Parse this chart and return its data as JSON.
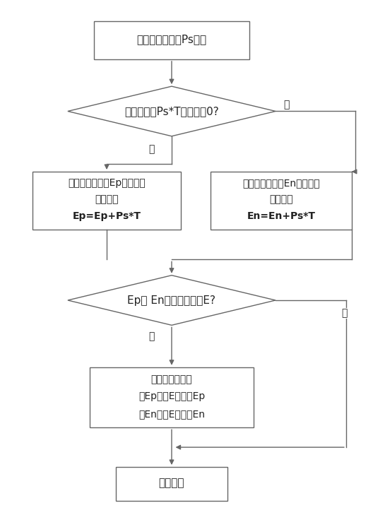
{
  "bg_color": "#ffffff",
  "edge_color": "#666666",
  "text_color": "#222222",
  "arrow_color": "#666666",
  "font_size": 11,
  "small_font_size": 10,
  "start_label": "单周期平均功率Ps输入",
  "diamond1_label": "单周期电能Ps*T是否大于0?",
  "box_left_lines": [
    "正向电能累加器Ep累加单周",
    "期电能：",
    "Ep=Ep+Ps*T"
  ],
  "box_right_lines": [
    "反向电能累加器En累加单周",
    "期电能：",
    "En=En+Ps*T"
  ],
  "diamond2_label": "Ep或 En大于电量阈值E?",
  "box_action_lines": [
    "输出电量脉冲：",
    "若Ep大于E，则清Ep",
    "若En大于E，则清En"
  ],
  "end_label": "算法结束",
  "yes1_label": "是",
  "no1_label": "否",
  "yes2_label": "是",
  "no2_label": "否"
}
